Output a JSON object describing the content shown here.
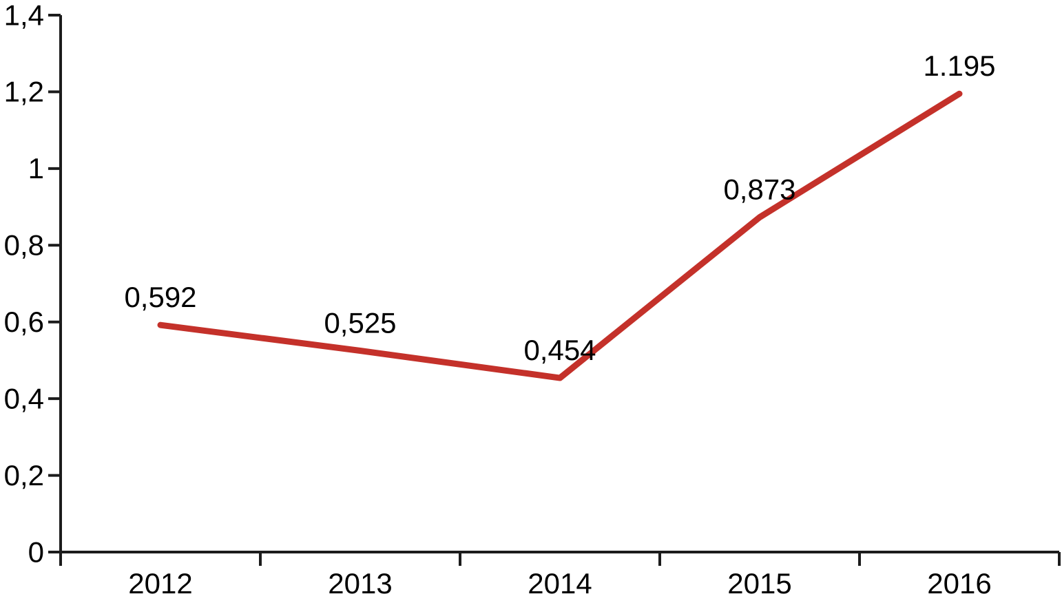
{
  "page": {
    "background": "#ffffff"
  },
  "chart_data": {
    "type": "line",
    "title": "",
    "xlabel": "",
    "ylabel": "",
    "categories": [
      "2012",
      "2013",
      "2014",
      "2015",
      "2016"
    ],
    "series": [
      {
        "name": "series-1",
        "color": "#c4312a",
        "values": [
          0.592,
          0.525,
          0.454,
          0.873,
          1.195
        ],
        "point_labels": [
          "0,592",
          "0,525",
          "0,454",
          "0,873",
          "1.195"
        ]
      }
    ],
    "y_axis": {
      "min": 0,
      "max": 1.4,
      "tick_step": 0.2,
      "tick_labels": [
        "0",
        "0,2",
        "0,4",
        "0,6",
        "0,8",
        "1",
        "1,2",
        "1,4"
      ]
    },
    "x_axis": {
      "tick_labels": [
        "2012",
        "2013",
        "2014",
        "2015",
        "2016"
      ]
    },
    "styles": {
      "axis_color": "#1c1c1c",
      "text_color": "#000000",
      "line_color": "#c4312a"
    },
    "grid": false,
    "legend_position": "none",
    "number_format": "comma-decimal"
  }
}
